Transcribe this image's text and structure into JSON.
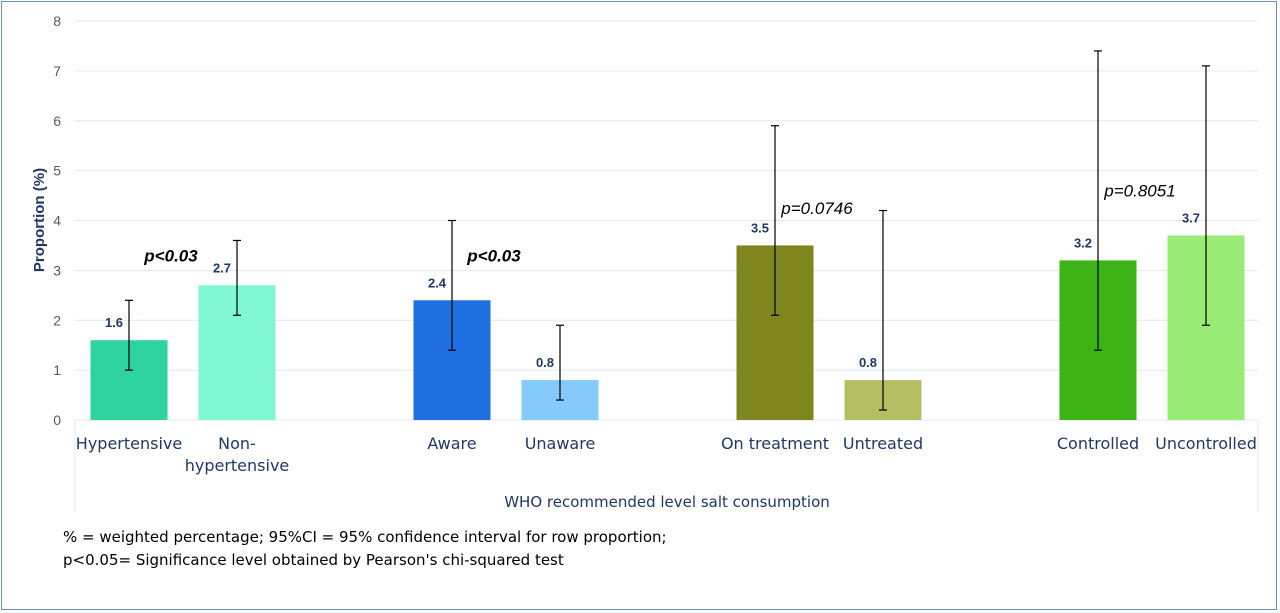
{
  "colors": {
    "grid": "#dfe9ef",
    "axis_text": "#595959",
    "label_text": "#1f3864",
    "error_bar": "#000000",
    "frame": "#6f8fc4"
  },
  "chart_data": {
    "type": "bar",
    "ylabel": "Proportion (%)",
    "xlabel": "WHO recommended level salt consumption",
    "ylim": [
      0,
      8
    ],
    "yticks": [
      0,
      1,
      2,
      3,
      4,
      5,
      6,
      7,
      8
    ],
    "grid": true,
    "bars": [
      {
        "category": "Hypertensive",
        "category_lines": [
          "Hypertensive"
        ],
        "value": 1.6,
        "value_label": "1.6",
        "ci": [
          1.0,
          2.4
        ],
        "color": "#2ed3a0"
      },
      {
        "category": "Non-hypertensive",
        "category_lines": [
          "Non-",
          "hypertensive"
        ],
        "value": 2.7,
        "value_label": "2.7",
        "ci": [
          2.1,
          3.6
        ],
        "color": "#7ff7d3"
      },
      {
        "category": "Aware",
        "category_lines": [
          "Aware"
        ],
        "value": 2.4,
        "value_label": "2.4",
        "ci": [
          1.4,
          4.0
        ],
        "color": "#1f6fe0"
      },
      {
        "category": "Unaware",
        "category_lines": [
          "Unaware"
        ],
        "value": 0.8,
        "value_label": "0.8",
        "ci": [
          0.4,
          1.9
        ],
        "color": "#84cafb"
      },
      {
        "category": "On treatment",
        "category_lines": [
          "On treatment"
        ],
        "value": 3.5,
        "value_label": "3.5",
        "ci": [
          2.1,
          5.9
        ],
        "color": "#7f861d"
      },
      {
        "category": "Untreated",
        "category_lines": [
          "Untreated"
        ],
        "value": 0.8,
        "value_label": "0.8",
        "ci": [
          0.2,
          4.2
        ],
        "color": "#b5bd63"
      },
      {
        "category": "Controlled",
        "category_lines": [
          "Controlled"
        ],
        "value": 3.2,
        "value_label": "3.2",
        "ci": [
          1.4,
          7.4
        ],
        "color": "#3db315"
      },
      {
        "category": "Uncontrolled",
        "category_lines": [
          "Uncontrolled"
        ],
        "value": 3.7,
        "value_label": "3.7",
        "ci": [
          1.9,
          7.1
        ],
        "color": "#98ec75"
      }
    ],
    "annotations": [
      {
        "text": "p<0.03",
        "group": 0,
        "y": 3.3,
        "bold": true
      },
      {
        "text": "p<0.03",
        "group": 1,
        "y": 3.3,
        "bold": true
      },
      {
        "text": "p=0.0746",
        "group": 2,
        "y": 4.25,
        "bold": false
      },
      {
        "text": "p=0.8051",
        "group": 3,
        "y": 4.6,
        "bold": false
      }
    ]
  },
  "footnotes": [
    "% = weighted percentage; 95%CI = 95% confidence interval for row proportion;",
    "p<0.05= Significance level obtained by Pearson's chi-squared test"
  ]
}
